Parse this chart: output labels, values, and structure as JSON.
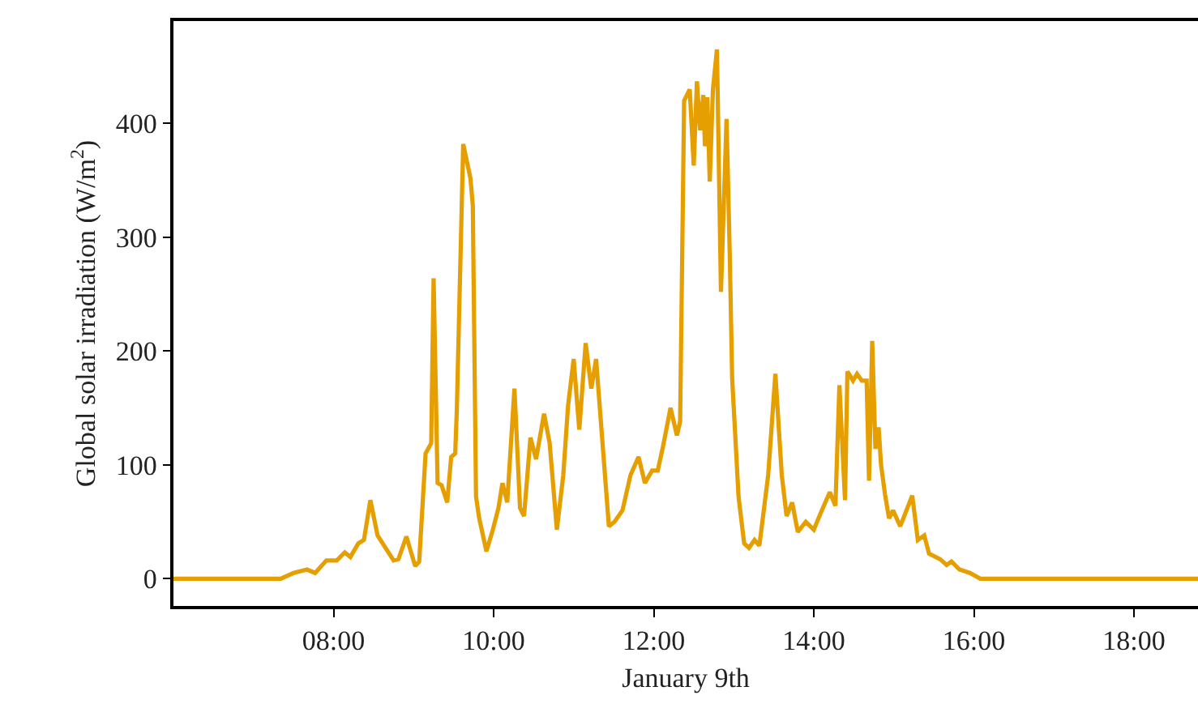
{
  "chart_data": {
    "type": "line",
    "xlabel": "January 9th",
    "ylabel": "Global solar irradiation (W/m$^{2}$)",
    "xlim": [
      6,
      18.8
    ],
    "ylim": [
      -24,
      490
    ],
    "xticks": [
      {
        "value": 8,
        "label": "08:00"
      },
      {
        "value": 10,
        "label": "10:00"
      },
      {
        "value": 12,
        "label": "12:00"
      },
      {
        "value": 14,
        "label": "14:00"
      },
      {
        "value": 16,
        "label": "16:00"
      },
      {
        "value": 18,
        "label": "18:00"
      }
    ],
    "yticks": [
      0,
      100,
      200,
      300,
      400
    ],
    "grid": false,
    "marker": "none",
    "line_style": "solid",
    "x": [
      6.0,
      7.34,
      7.5,
      7.67,
      7.77,
      7.91,
      8.04,
      8.14,
      8.21,
      8.31,
      8.38,
      8.46,
      8.55,
      8.65,
      8.75,
      8.81,
      8.91,
      9.02,
      9.07,
      9.15,
      9.22,
      9.25,
      9.3,
      9.35,
      9.42,
      9.47,
      9.52,
      9.54,
      9.62,
      9.71,
      9.74,
      9.78,
      9.82,
      9.91,
      9.99,
      10.06,
      10.11,
      10.17,
      10.26,
      10.33,
      10.38,
      10.46,
      10.53,
      10.63,
      10.7,
      10.79,
      10.87,
      10.93,
      11.0,
      11.07,
      11.15,
      11.22,
      11.28,
      11.34,
      11.44,
      11.51,
      11.61,
      11.71,
      11.81,
      11.89,
      11.98,
      12.05,
      12.11,
      12.21,
      12.29,
      12.33,
      12.38,
      12.45,
      12.5,
      12.54,
      12.58,
      12.62,
      12.64,
      12.67,
      12.7,
      12.74,
      12.79,
      12.84,
      12.91,
      12.95,
      12.98,
      13.06,
      13.13,
      13.19,
      13.26,
      13.32,
      13.43,
      13.52,
      13.6,
      13.66,
      13.73,
      13.8,
      13.9,
      14.0,
      14.1,
      14.2,
      14.27,
      14.32,
      14.39,
      14.42,
      14.49,
      14.54,
      14.6,
      14.66,
      14.69,
      14.73,
      14.77,
      14.81,
      14.84,
      14.89,
      14.94,
      14.99,
      15.08,
      15.23,
      15.3,
      15.38,
      15.44,
      15.58,
      15.66,
      15.72,
      15.82,
      15.95,
      16.08,
      18.8
    ],
    "series": [
      {
        "color": "#e69f00",
        "values": [
          0,
          0,
          5,
          8,
          5,
          16,
          16,
          23,
          19,
          31,
          34,
          69,
          38,
          27,
          16,
          17,
          37,
          11,
          15,
          110,
          119,
          264,
          84,
          82,
          67,
          107,
          110,
          148,
          382,
          352,
          328,
          72,
          53,
          24,
          43,
          62,
          84,
          67,
          167,
          62,
          55,
          124,
          105,
          145,
          119,
          43,
          91,
          152,
          193,
          131,
          207,
          167,
          193,
          138,
          46,
          50,
          60,
          91,
          107,
          84,
          95,
          95,
          114,
          150,
          126,
          138,
          420,
          430,
          363,
          437,
          394,
          425,
          380,
          423,
          349,
          430,
          465,
          252,
          404,
          285,
          176,
          72,
          31,
          27,
          34,
          29,
          91,
          180,
          91,
          55,
          67,
          41,
          50,
          43,
          60,
          76,
          64,
          170,
          69,
          182,
          174,
          180,
          174,
          174,
          86,
          209,
          114,
          133,
          100,
          74,
          53,
          60,
          46,
          73,
          34,
          38,
          22,
          17,
          12,
          15,
          8,
          5,
          0,
          0
        ]
      }
    ]
  }
}
